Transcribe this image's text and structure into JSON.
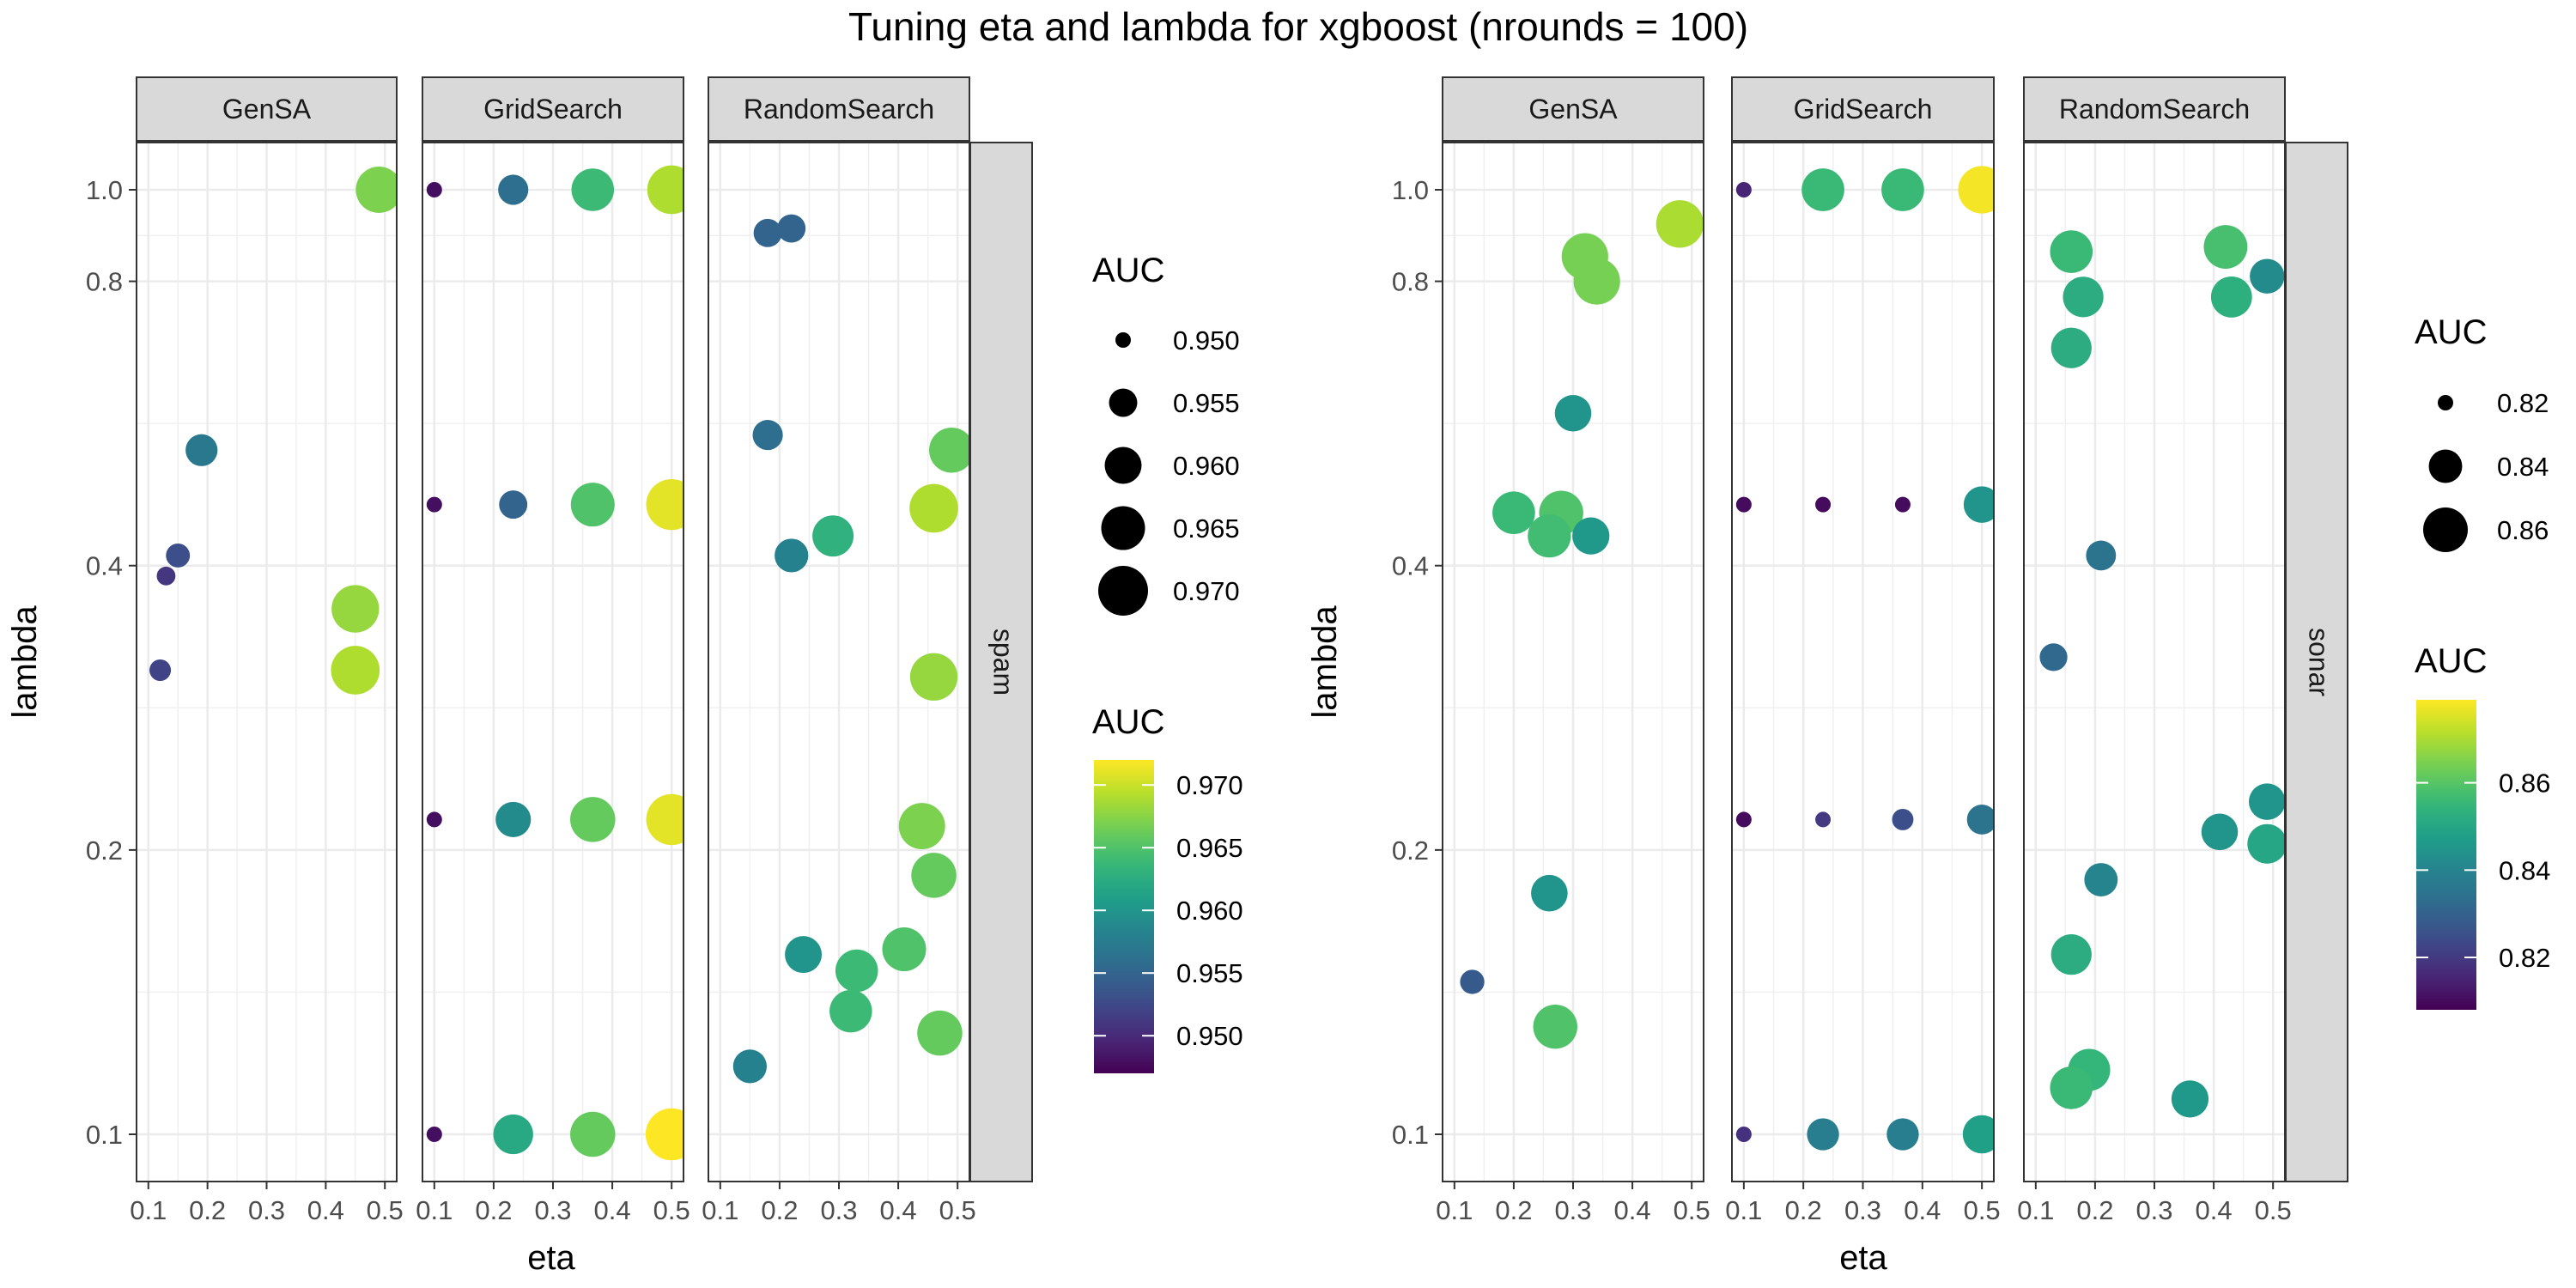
{
  "title": "Tuning eta and lambda for xgboost (nrounds = 100)",
  "chart_data": [
    {
      "type": "scatter",
      "dataset": "spam",
      "xlabel": "eta",
      "ylabel": "lambda",
      "y_scale": "log",
      "xlim": [
        0.1,
        0.5
      ],
      "ylim": [
        0.1,
        1.0
      ],
      "x_ticks": [
        "0.1",
        "0.2",
        "0.3",
        "0.4",
        "0.5"
      ],
      "y_ticks": [
        "0.1",
        "0.2",
        "0.4",
        "0.8",
        "1.0"
      ],
      "grid": true,
      "panels": [
        {
          "name": "GenSA",
          "points": [
            {
              "eta": 0.49,
              "lambda": 1.0,
              "auc": 0.967
            },
            {
              "eta": 0.19,
              "lambda": 0.53,
              "auc": 0.957
            },
            {
              "eta": 0.15,
              "lambda": 0.41,
              "auc": 0.953
            },
            {
              "eta": 0.13,
              "lambda": 0.39,
              "auc": 0.951
            },
            {
              "eta": 0.12,
              "lambda": 0.31,
              "auc": 0.952
            },
            {
              "eta": 0.45,
              "lambda": 0.36,
              "auc": 0.968
            },
            {
              "eta": 0.45,
              "lambda": 0.31,
              "auc": 0.969
            }
          ]
        },
        {
          "name": "GridSearch",
          "points": [
            {
              "eta": 0.1,
              "lambda": 1.0,
              "auc": 0.948
            },
            {
              "eta": 0.233,
              "lambda": 1.0,
              "auc": 0.956
            },
            {
              "eta": 0.367,
              "lambda": 1.0,
              "auc": 0.964
            },
            {
              "eta": 0.5,
              "lambda": 1.0,
              "auc": 0.969
            },
            {
              "eta": 0.1,
              "lambda": 0.4642,
              "auc": 0.948
            },
            {
              "eta": 0.233,
              "lambda": 0.4642,
              "auc": 0.955
            },
            {
              "eta": 0.367,
              "lambda": 0.4642,
              "auc": 0.965
            },
            {
              "eta": 0.5,
              "lambda": 0.4642,
              "auc": 0.971
            },
            {
              "eta": 0.1,
              "lambda": 0.2154,
              "auc": 0.948
            },
            {
              "eta": 0.233,
              "lambda": 0.2154,
              "auc": 0.959
            },
            {
              "eta": 0.367,
              "lambda": 0.2154,
              "auc": 0.966
            },
            {
              "eta": 0.5,
              "lambda": 0.2154,
              "auc": 0.971
            },
            {
              "eta": 0.1,
              "lambda": 0.1,
              "auc": 0.948
            },
            {
              "eta": 0.233,
              "lambda": 0.1,
              "auc": 0.962
            },
            {
              "eta": 0.367,
              "lambda": 0.1,
              "auc": 0.966
            },
            {
              "eta": 0.5,
              "lambda": 0.1,
              "auc": 0.972
            }
          ]
        },
        {
          "name": "RandomSearch",
          "points": [
            {
              "eta": 0.18,
              "lambda": 0.9,
              "auc": 0.955
            },
            {
              "eta": 0.22,
              "lambda": 0.91,
              "auc": 0.955
            },
            {
              "eta": 0.18,
              "lambda": 0.55,
              "auc": 0.956
            },
            {
              "eta": 0.49,
              "lambda": 0.53,
              "auc": 0.966
            },
            {
              "eta": 0.46,
              "lambda": 0.46,
              "auc": 0.969
            },
            {
              "eta": 0.29,
              "lambda": 0.43,
              "auc": 0.963
            },
            {
              "eta": 0.22,
              "lambda": 0.41,
              "auc": 0.958
            },
            {
              "eta": 0.46,
              "lambda": 0.305,
              "auc": 0.968
            },
            {
              "eta": 0.44,
              "lambda": 0.212,
              "auc": 0.967
            },
            {
              "eta": 0.46,
              "lambda": 0.188,
              "auc": 0.966
            },
            {
              "eta": 0.24,
              "lambda": 0.155,
              "auc": 0.96
            },
            {
              "eta": 0.41,
              "lambda": 0.157,
              "auc": 0.965
            },
            {
              "eta": 0.33,
              "lambda": 0.149,
              "auc": 0.964
            },
            {
              "eta": 0.32,
              "lambda": 0.135,
              "auc": 0.964
            },
            {
              "eta": 0.47,
              "lambda": 0.128,
              "auc": 0.966
            },
            {
              "eta": 0.15,
              "lambda": 0.118,
              "auc": 0.958
            }
          ]
        }
      ],
      "size_legend": {
        "title": "AUC",
        "values": [
          "0.950",
          "0.955",
          "0.960",
          "0.965",
          "0.970"
        ]
      },
      "color_legend": {
        "title": "AUC",
        "ticks": [
          "0.950",
          "0.955",
          "0.960",
          "0.965",
          "0.970"
        ],
        "range": [
          0.947,
          0.972
        ]
      },
      "strip_label": "spam"
    },
    {
      "type": "scatter",
      "dataset": "sonar",
      "xlabel": "eta",
      "ylabel": "lambda",
      "y_scale": "log",
      "xlim": [
        0.1,
        0.5
      ],
      "ylim": [
        0.1,
        1.0
      ],
      "x_ticks": [
        "0.1",
        "0.2",
        "0.3",
        "0.4",
        "0.5"
      ],
      "y_ticks": [
        "0.1",
        "0.2",
        "0.4",
        "0.8",
        "1.0"
      ],
      "grid": true,
      "panels": [
        {
          "name": "GenSA",
          "points": [
            {
              "eta": 0.48,
              "lambda": 0.92,
              "auc": 0.87
            },
            {
              "eta": 0.32,
              "lambda": 0.85,
              "auc": 0.864
            },
            {
              "eta": 0.34,
              "lambda": 0.8,
              "auc": 0.864
            },
            {
              "eta": 0.3,
              "lambda": 0.58,
              "auc": 0.845
            },
            {
              "eta": 0.2,
              "lambda": 0.455,
              "auc": 0.856
            },
            {
              "eta": 0.28,
              "lambda": 0.455,
              "auc": 0.859
            },
            {
              "eta": 0.26,
              "lambda": 0.43,
              "auc": 0.857
            },
            {
              "eta": 0.33,
              "lambda": 0.43,
              "auc": 0.846
            },
            {
              "eta": 0.26,
              "lambda": 0.18,
              "auc": 0.845
            },
            {
              "eta": 0.13,
              "lambda": 0.145,
              "auc": 0.828
            },
            {
              "eta": 0.27,
              "lambda": 0.13,
              "auc": 0.859
            }
          ]
        },
        {
          "name": "GridSearch",
          "points": [
            {
              "eta": 0.1,
              "lambda": 1.0,
              "auc": 0.815
            },
            {
              "eta": 0.233,
              "lambda": 1.0,
              "auc": 0.856
            },
            {
              "eta": 0.367,
              "lambda": 1.0,
              "auc": 0.856
            },
            {
              "eta": 0.5,
              "lambda": 1.0,
              "auc": 0.878
            },
            {
              "eta": 0.1,
              "lambda": 0.4642,
              "auc": 0.81
            },
            {
              "eta": 0.233,
              "lambda": 0.4642,
              "auc": 0.81
            },
            {
              "eta": 0.367,
              "lambda": 0.4642,
              "auc": 0.81
            },
            {
              "eta": 0.5,
              "lambda": 0.4642,
              "auc": 0.845
            },
            {
              "eta": 0.1,
              "lambda": 0.2154,
              "auc": 0.81
            },
            {
              "eta": 0.233,
              "lambda": 0.2154,
              "auc": 0.82
            },
            {
              "eta": 0.367,
              "lambda": 0.2154,
              "auc": 0.825
            },
            {
              "eta": 0.5,
              "lambda": 0.2154,
              "auc": 0.835
            },
            {
              "eta": 0.1,
              "lambda": 0.1,
              "auc": 0.818
            },
            {
              "eta": 0.233,
              "lambda": 0.1,
              "auc": 0.838
            },
            {
              "eta": 0.367,
              "lambda": 0.1,
              "auc": 0.838
            },
            {
              "eta": 0.5,
              "lambda": 0.1,
              "auc": 0.848
            }
          ]
        },
        {
          "name": "RandomSearch",
          "points": [
            {
              "eta": 0.16,
              "lambda": 0.86,
              "auc": 0.856
            },
            {
              "eta": 0.42,
              "lambda": 0.87,
              "auc": 0.858
            },
            {
              "eta": 0.49,
              "lambda": 0.81,
              "auc": 0.842
            },
            {
              "eta": 0.18,
              "lambda": 0.77,
              "auc": 0.852
            },
            {
              "eta": 0.43,
              "lambda": 0.77,
              "auc": 0.853
            },
            {
              "eta": 0.16,
              "lambda": 0.68,
              "auc": 0.852
            },
            {
              "eta": 0.21,
              "lambda": 0.41,
              "auc": 0.835
            },
            {
              "eta": 0.13,
              "lambda": 0.32,
              "auc": 0.832
            },
            {
              "eta": 0.49,
              "lambda": 0.225,
              "auc": 0.845
            },
            {
              "eta": 0.41,
              "lambda": 0.209,
              "auc": 0.845
            },
            {
              "eta": 0.49,
              "lambda": 0.203,
              "auc": 0.85
            },
            {
              "eta": 0.21,
              "lambda": 0.186,
              "auc": 0.84
            },
            {
              "eta": 0.16,
              "lambda": 0.155,
              "auc": 0.852
            },
            {
              "eta": 0.19,
              "lambda": 0.117,
              "auc": 0.855
            },
            {
              "eta": 0.16,
              "lambda": 0.112,
              "auc": 0.856
            },
            {
              "eta": 0.36,
              "lambda": 0.109,
              "auc": 0.846
            }
          ]
        }
      ],
      "size_legend": {
        "title": "AUC",
        "values": [
          "0.82",
          "0.84",
          "0.86"
        ]
      },
      "color_legend": {
        "title": "AUC",
        "ticks": [
          "0.82",
          "0.84",
          "0.86"
        ],
        "range": [
          0.808,
          0.879
        ]
      },
      "strip_label": "sonar"
    }
  ]
}
